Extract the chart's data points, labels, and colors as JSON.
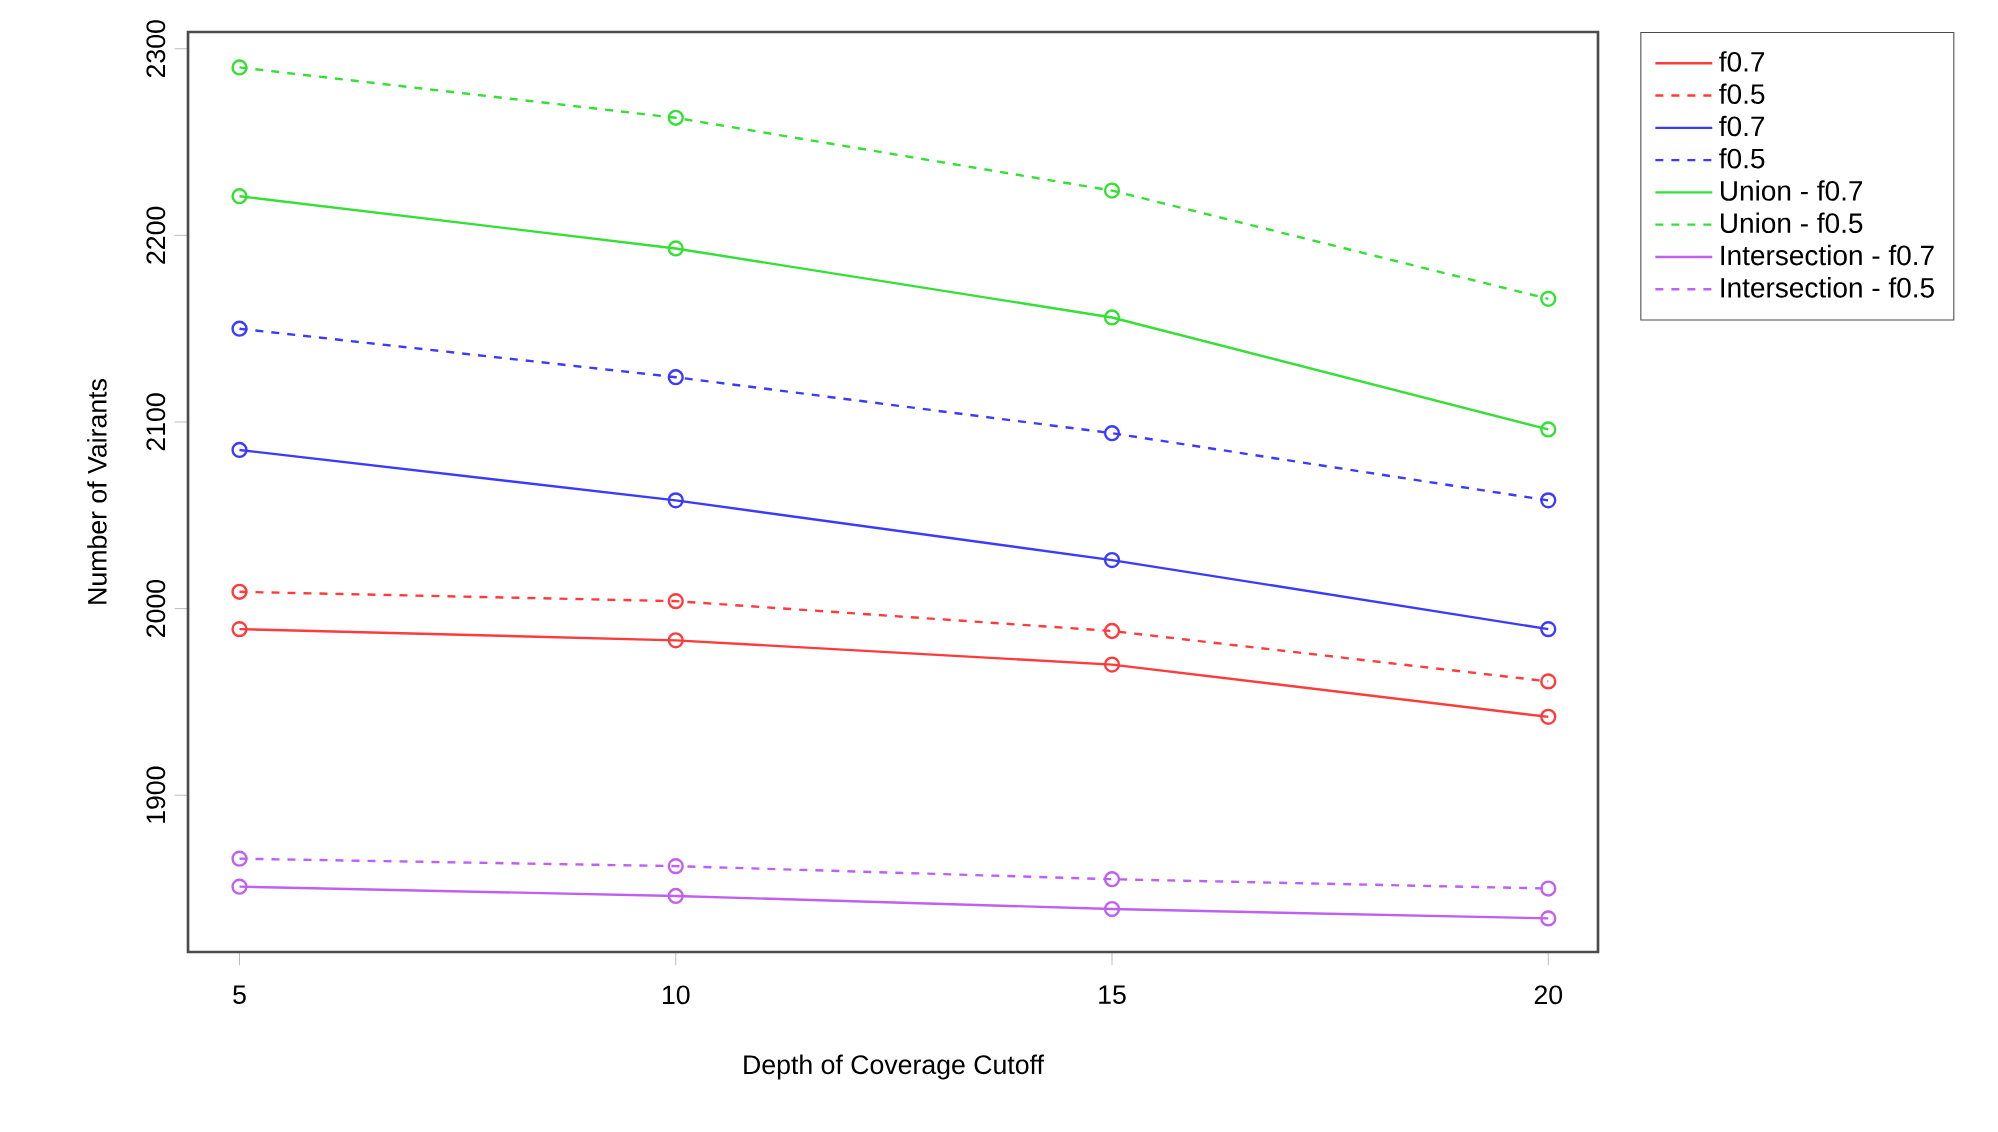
{
  "chart_data": {
    "type": "line",
    "xlabel": "Depth of Coverage Cutoff",
    "ylabel": "Number of Vairants",
    "x": [
      5,
      10,
      15,
      20
    ],
    "xlim": [
      4.41,
      20.57
    ],
    "xticks": [
      5,
      10,
      15,
      20
    ],
    "ylim": [
      1816,
      2309
    ],
    "yticks": [
      1900,
      2000,
      2100,
      2200,
      2300
    ],
    "marker": "circle",
    "legend": "right",
    "series": [
      {
        "name": "f0.7",
        "color": "#ff3b3b",
        "line_style": "solid",
        "values": [
          1989,
          1983,
          1970,
          1942
        ]
      },
      {
        "name": "f0.5",
        "color": "#ff3b3b",
        "line_style": "dashed",
        "values": [
          2009,
          2004,
          1988,
          1961
        ]
      },
      {
        "name": "f0.7",
        "color": "#3b3bff",
        "line_style": "solid",
        "values": [
          2085,
          2058,
          2026,
          1989
        ]
      },
      {
        "name": "f0.5",
        "color": "#3b3bff",
        "line_style": "dashed",
        "values": [
          2150,
          2124,
          2094,
          2058
        ]
      },
      {
        "name": "Union - f0.7",
        "color": "#33e033",
        "line_style": "solid",
        "values": [
          2221,
          2193,
          2156,
          2096
        ]
      },
      {
        "name": "Union - f0.5",
        "color": "#33e033",
        "line_style": "dashed",
        "values": [
          2290,
          2263,
          2224,
          2166
        ]
      },
      {
        "name": "Intersection - f0.7",
        "color": "#c060f0",
        "line_style": "solid",
        "values": [
          1851,
          1846,
          1839,
          1834
        ]
      },
      {
        "name": "Intersection - f0.5",
        "color": "#c060f0",
        "line_style": "dashed",
        "values": [
          1866,
          1862,
          1855,
          1850
        ]
      }
    ]
  }
}
